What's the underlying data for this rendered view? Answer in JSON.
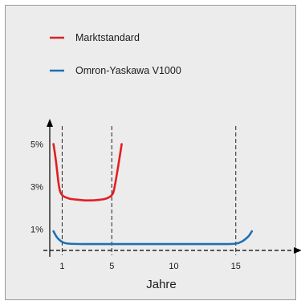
{
  "chart_data": {
    "type": "line",
    "title": "",
    "xlabel": "Jahre",
    "ylabel": "",
    "xlim": [
      0,
      17
    ],
    "ylim": [
      0,
      6
    ],
    "x_ticks": [
      1,
      5,
      10,
      15
    ],
    "x_tick_labels": [
      "1",
      "5",
      "10",
      "15"
    ],
    "y_ticks": [
      1,
      3,
      5
    ],
    "y_tick_labels": [
      "1%",
      "3%",
      "5%"
    ],
    "vertical_reference_lines": [
      1,
      5,
      15
    ],
    "grid": false,
    "legend_position": "top-left",
    "series": [
      {
        "name": "Marktstandard",
        "color": "#e31e24",
        "points": [
          [
            0.3,
            5.0
          ],
          [
            0.5,
            4.2
          ],
          [
            0.75,
            3.0
          ],
          [
            1.0,
            2.6
          ],
          [
            1.5,
            2.45
          ],
          [
            2.0,
            2.4
          ],
          [
            3.0,
            2.35
          ],
          [
            4.0,
            2.38
          ],
          [
            4.6,
            2.45
          ],
          [
            5.0,
            2.6
          ],
          [
            5.2,
            2.9
          ],
          [
            5.5,
            3.9
          ],
          [
            5.8,
            5.0
          ]
        ]
      },
      {
        "name": "Omron-Yaskawa V1000",
        "color": "#1f6fb2",
        "points": [
          [
            0.3,
            0.9
          ],
          [
            0.6,
            0.6
          ],
          [
            1.0,
            0.4
          ],
          [
            1.5,
            0.32
          ],
          [
            3.0,
            0.3
          ],
          [
            5.0,
            0.3
          ],
          [
            10.0,
            0.3
          ],
          [
            14.0,
            0.3
          ],
          [
            15.0,
            0.32
          ],
          [
            15.5,
            0.42
          ],
          [
            16.0,
            0.65
          ],
          [
            16.3,
            0.9
          ]
        ]
      }
    ]
  }
}
